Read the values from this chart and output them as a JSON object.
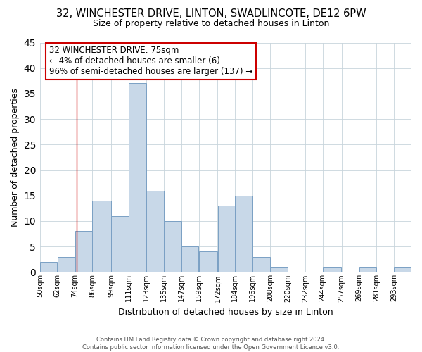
{
  "title": "32, WINCHESTER DRIVE, LINTON, SWADLINCOTE, DE12 6PW",
  "subtitle": "Size of property relative to detached houses in Linton",
  "xlabel": "Distribution of detached houses by size in Linton",
  "ylabel": "Number of detached properties",
  "bin_labels": [
    "50sqm",
    "62sqm",
    "74sqm",
    "86sqm",
    "99sqm",
    "111sqm",
    "123sqm",
    "135sqm",
    "147sqm",
    "159sqm",
    "172sqm",
    "184sqm",
    "196sqm",
    "208sqm",
    "220sqm",
    "232sqm",
    "244sqm",
    "257sqm",
    "269sqm",
    "281sqm",
    "293sqm"
  ],
  "bar_heights": [
    2,
    3,
    8,
    14,
    11,
    37,
    16,
    10,
    5,
    4,
    13,
    15,
    3,
    1,
    0,
    0,
    1,
    0,
    1,
    0,
    1
  ],
  "bar_color": "#c8d8e8",
  "bar_edgecolor": "#7aa0c4",
  "property_line_x": 75,
  "ylim": [
    0,
    45
  ],
  "yticks": [
    0,
    5,
    10,
    15,
    20,
    25,
    30,
    35,
    40,
    45
  ],
  "annotation_title": "32 WINCHESTER DRIVE: 75sqm",
  "annotation_line1": "← 4% of detached houses are smaller (6)",
  "annotation_line2": "96% of semi-detached houses are larger (137) →",
  "annotation_box_facecolor": "#ffffff",
  "annotation_box_edgecolor": "#cc0000",
  "footer_line1": "Contains HM Land Registry data © Crown copyright and database right 2024.",
  "footer_line2": "Contains public sector information licensed under the Open Government Licence v3.0.",
  "background_color": "#ffffff",
  "grid_color": "#c8d4dc",
  "bin_edges": [
    50,
    62,
    74,
    86,
    99,
    111,
    123,
    135,
    147,
    159,
    172,
    184,
    196,
    208,
    220,
    232,
    244,
    257,
    269,
    281,
    293,
    305
  ]
}
